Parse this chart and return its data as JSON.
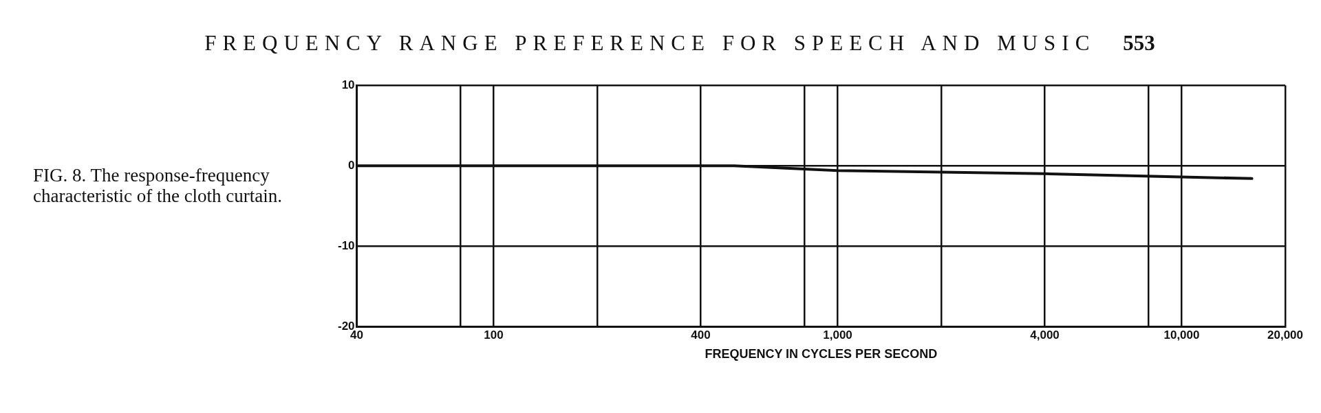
{
  "chart_data": {
    "type": "line",
    "title": "FREQUENCY RANGE PREFERENCE FOR SPEECH AND MUSIC",
    "xlabel": "FREQUENCY IN CYCLES PER SECOND",
    "annotations": [
      "553",
      "FIG. 8. The response-frequency characteristic of the cloth curtain."
    ],
    "series": [
      {
        "color": "#111111",
        "x": [
          40,
          500,
          1000,
          4000,
          16000
        ],
        "values": [
          0,
          0,
          -0.6,
          -1.0,
          -1.6
        ]
      }
    ],
    "log": "x",
    "xlim": [
      40,
      20000
    ],
    "xticks": [
      40,
      {
        "value": 80,
        "label": null
      },
      100,
      {
        "value": 200,
        "label": null
      },
      400,
      {
        "value": 800,
        "label": null
      },
      {
        "value": 1000,
        "label": "1,000"
      },
      {
        "value": 2000,
        "label": null
      },
      {
        "value": 4000,
        "label": "4,000"
      },
      {
        "value": 8000,
        "label": null
      },
      {
        "value": 10000,
        "label": "10,000"
      },
      {
        "value": 20000,
        "label": "20,000"
      }
    ],
    "ylim": [
      -20,
      10
    ],
    "yticks": [
      -20,
      -10,
      0,
      10
    ],
    "grid": true,
    "legend": false,
    "marker": "none",
    "line_style": "solid"
  }
}
